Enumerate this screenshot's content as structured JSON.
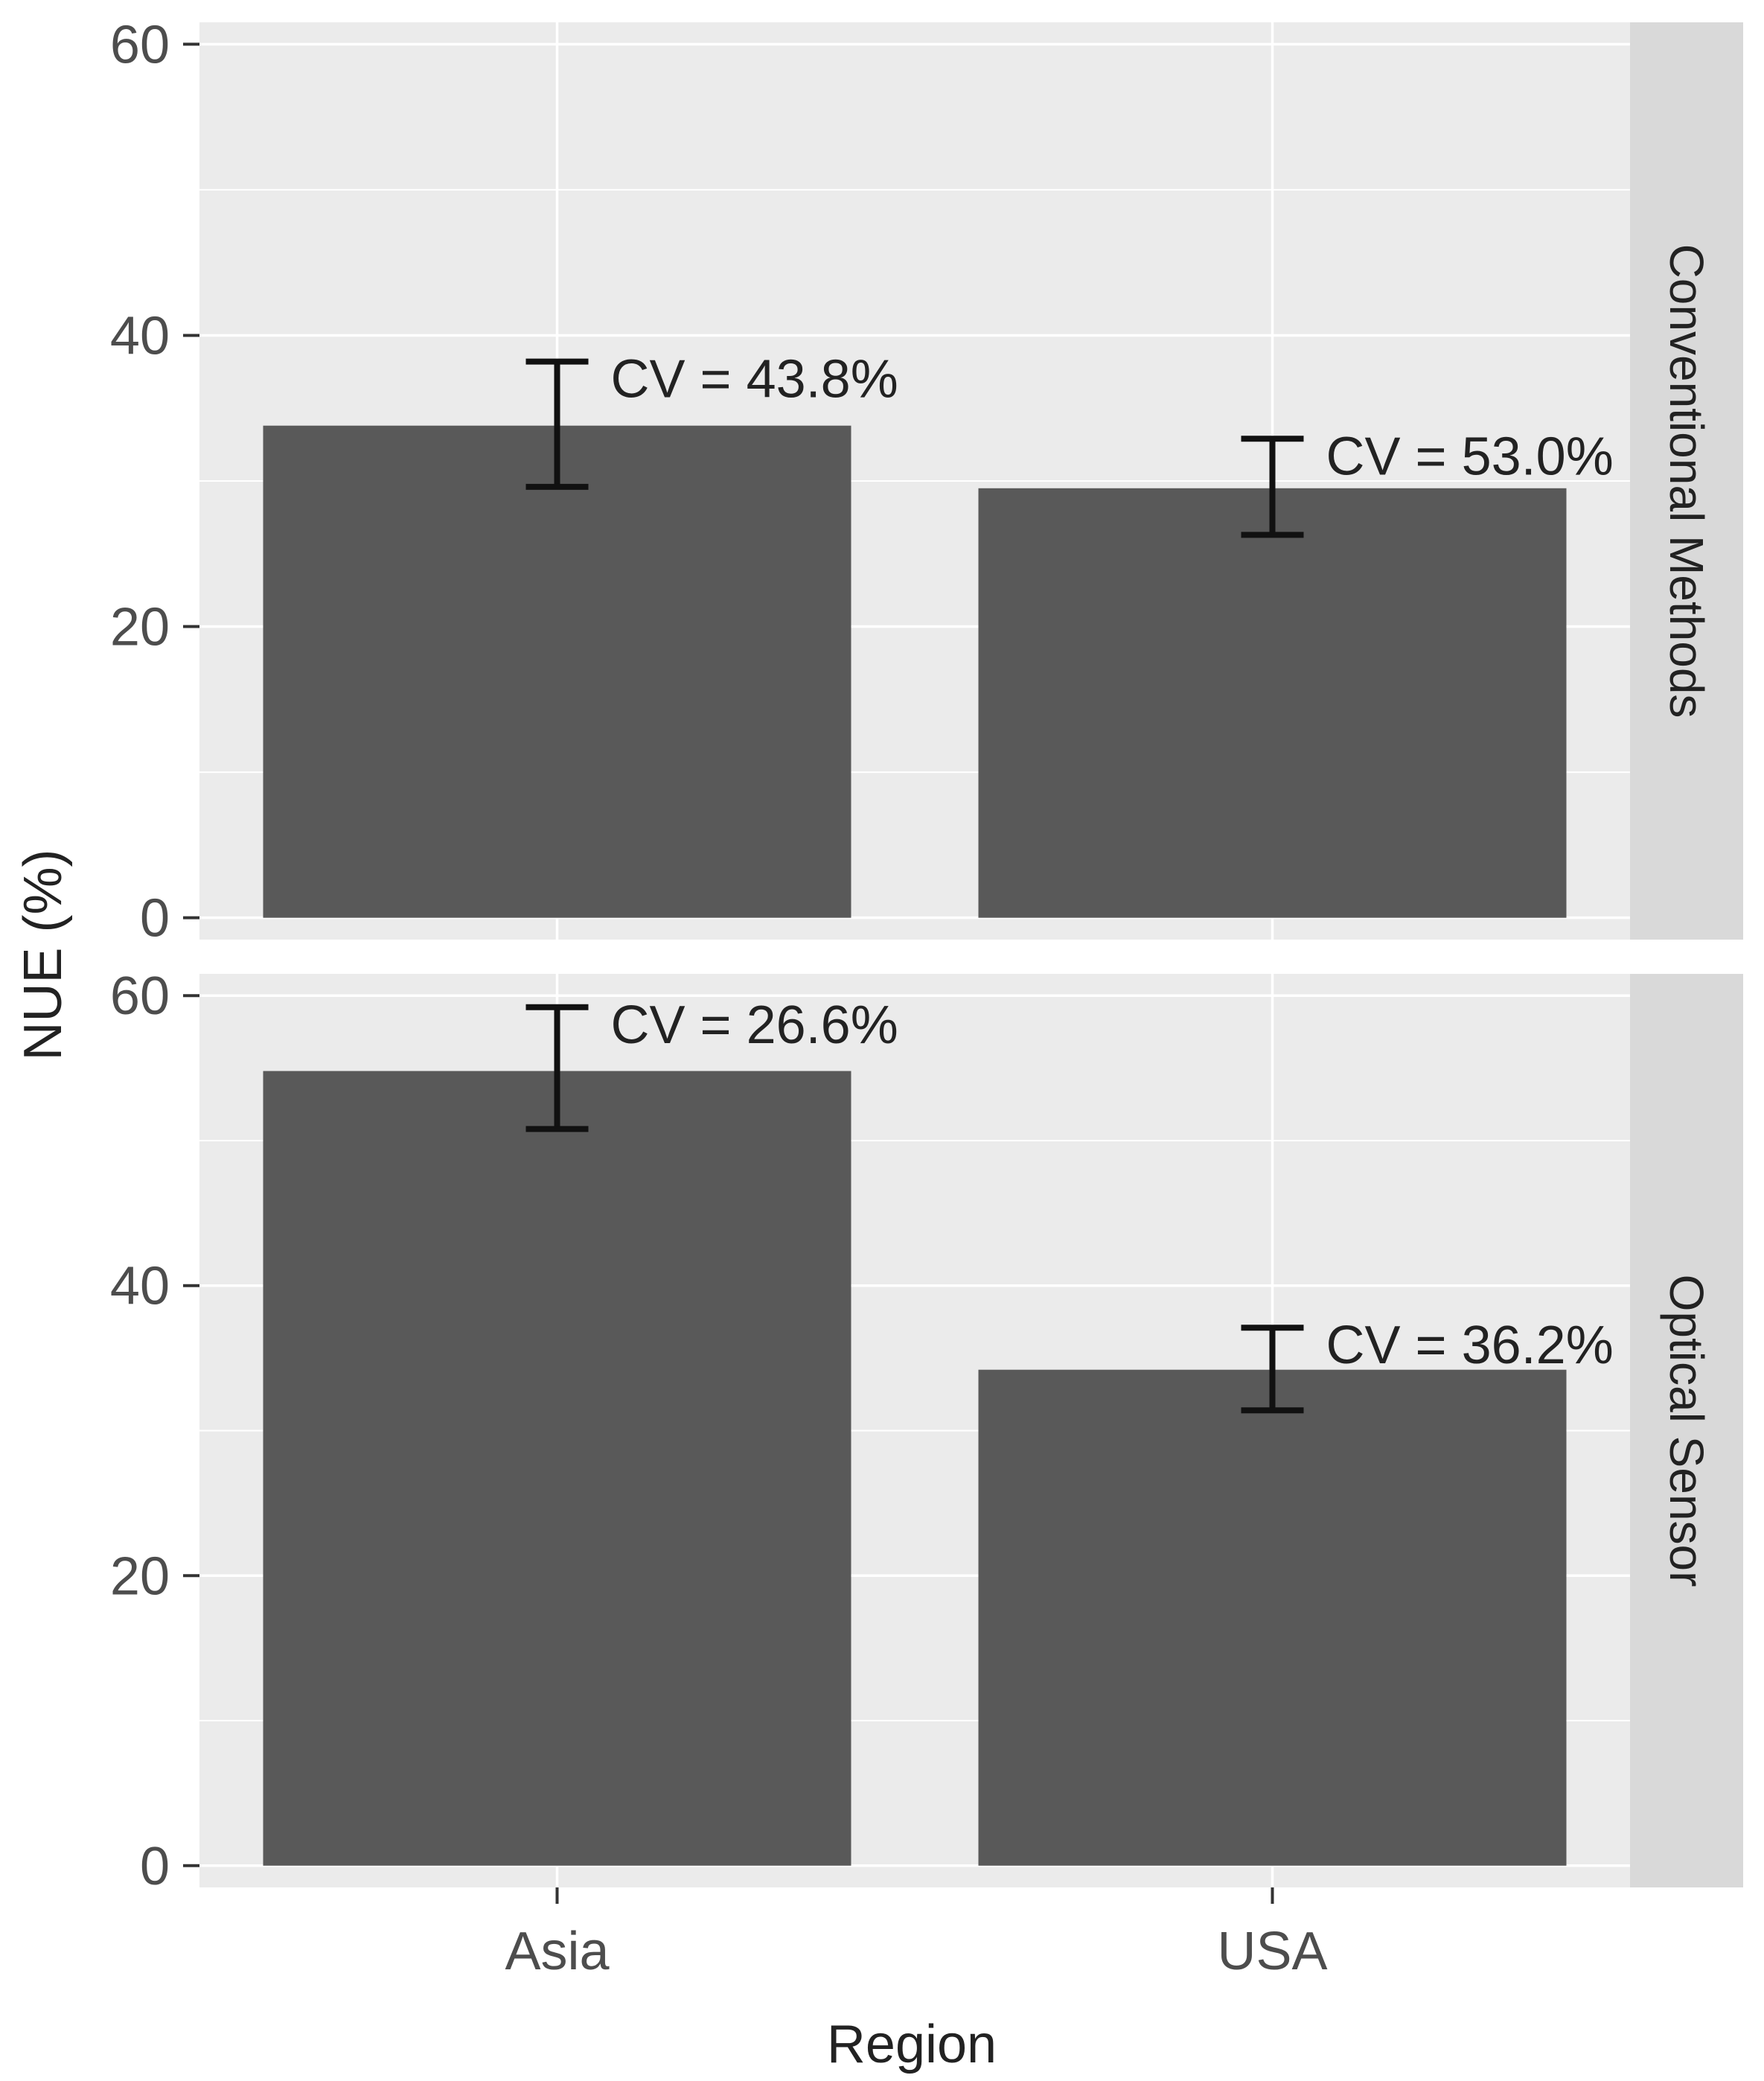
{
  "chart_data": {
    "type": "bar",
    "facet_direction": "vertical",
    "xlabel": "Region",
    "ylabel": "NUE (%)",
    "categories": [
      "Asia",
      "USA"
    ],
    "ylim": [
      -1.5,
      61.5
    ],
    "yticks": [
      0,
      20,
      40,
      60
    ],
    "grid": true,
    "bar_color": "#595959",
    "panel_background": "#ebebeb",
    "strip_background": "#d9d9d9",
    "grid_color": "#ffffff",
    "panels": [
      {
        "strip_label": "Conventional Methods",
        "values": [
          33.8,
          29.5
        ],
        "error_low": [
          29.6,
          26.3
        ],
        "error_high": [
          38.2,
          32.9
        ],
        "annotations": [
          "CV = 43.8%",
          "CV = 53.0%"
        ]
      },
      {
        "strip_label": "Optical Sensor",
        "values": [
          54.8,
          34.2
        ],
        "error_low": [
          50.8,
          31.4
        ],
        "error_high": [
          59.2,
          37.1
        ],
        "annotations": [
          "CV = 26.6%",
          "CV = 36.2%"
        ]
      }
    ]
  }
}
